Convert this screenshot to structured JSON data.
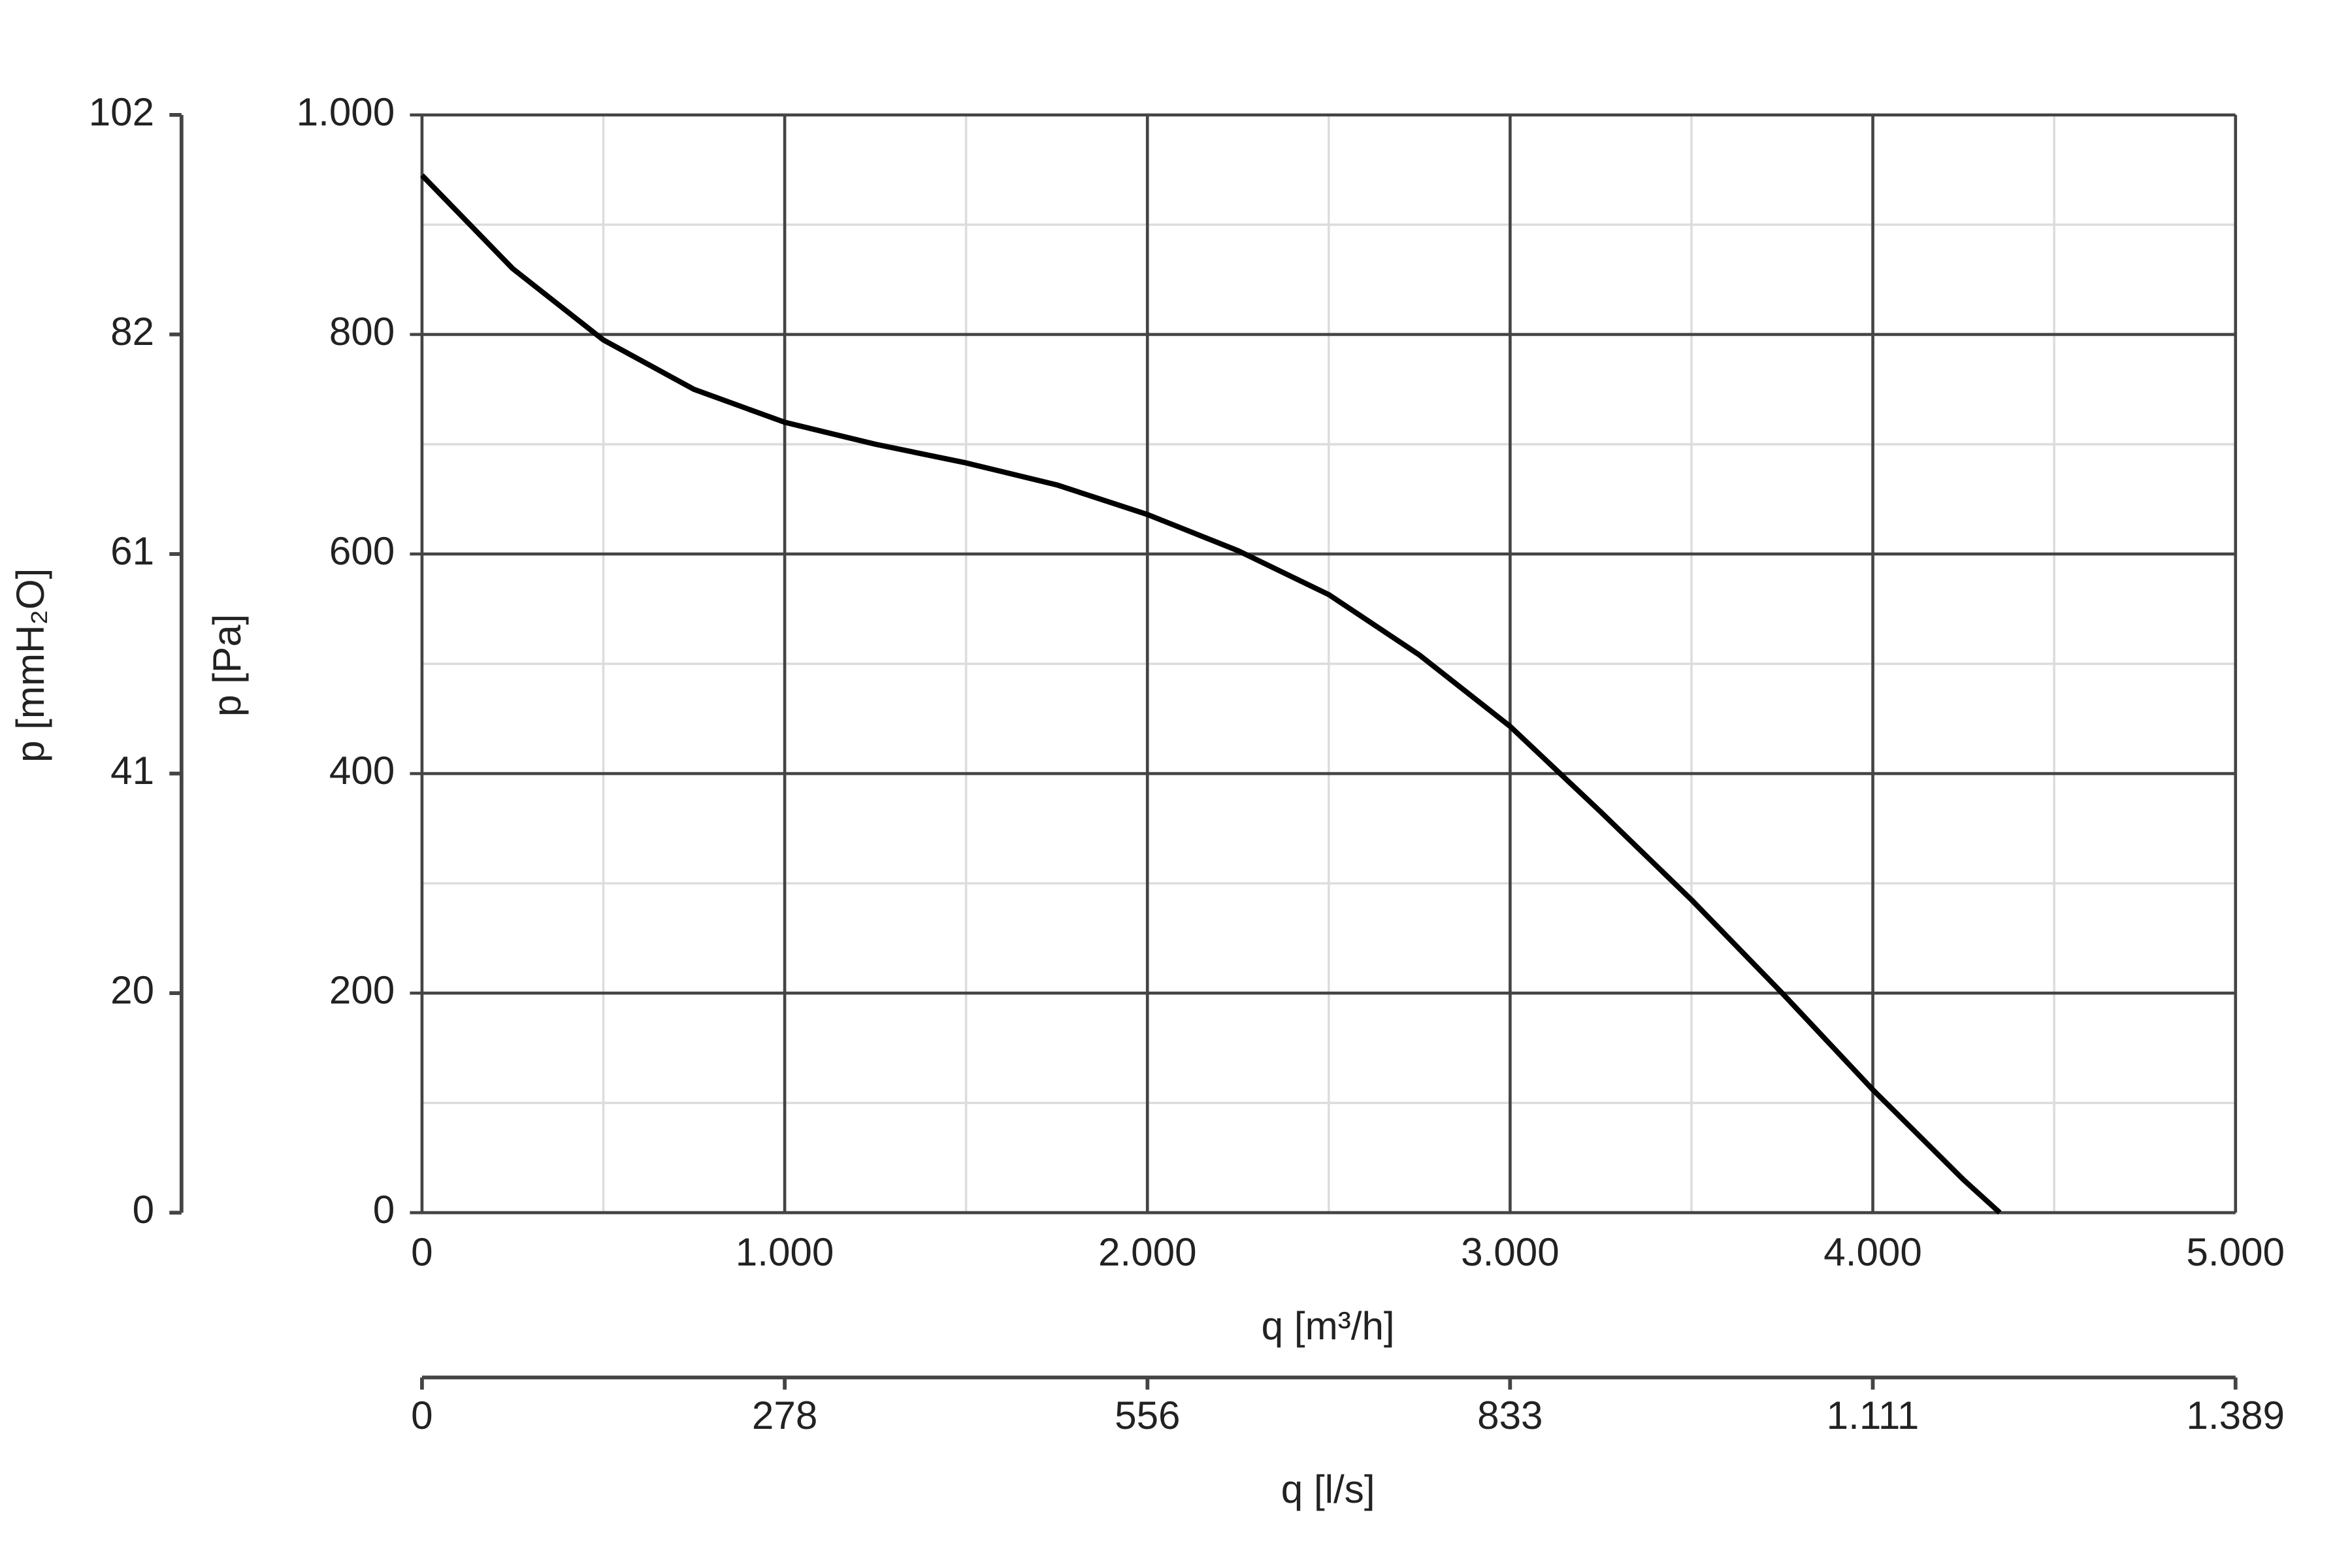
{
  "chart_data": {
    "type": "line",
    "x_label": "q [m³/h]",
    "y_label": "p [Pa]",
    "y2_label": "p [mmH₂O]",
    "x2_label": "q [l/s]",
    "x": [
      0,
      250,
      500,
      750,
      1000,
      1250,
      1500,
      1750,
      2000,
      2250,
      2500,
      2750,
      3000,
      3250,
      3500,
      3750,
      4000,
      4250,
      4350
    ],
    "series": [
      {
        "color": "#000000",
        "values": [
          945,
          860,
          795,
          750,
          720,
          700,
          683,
          663,
          636,
          603,
          563,
          508,
          443,
          365,
          285,
          200,
          112,
          30,
          0
        ]
      }
    ],
    "xlim": [
      0,
      5000
    ],
    "xticks": [
      0,
      {
        "value": 1000,
        "label": "1.000"
      },
      {
        "value": 2000,
        "label": "2.000"
      },
      {
        "value": 3000,
        "label": "3.000"
      },
      {
        "value": 4000,
        "label": "4.000"
      },
      {
        "value": 5000,
        "label": "5.000"
      }
    ],
    "x_minor_ticks": [
      500,
      1500,
      2500,
      3500,
      4500
    ],
    "ylim": [
      0,
      1000
    ],
    "yticks": [
      0,
      200,
      400,
      600,
      800,
      {
        "value": 1000,
        "label": "1.000"
      }
    ],
    "y_minor_ticks": [
      100,
      300,
      500,
      700,
      900
    ],
    "y2lim": [
      0,
      101.97
    ],
    "y2ticks": [
      0,
      {
        "value": 20.39,
        "label": "20"
      },
      {
        "value": 40.79,
        "label": "41"
      },
      {
        "value": 61.18,
        "label": "61"
      },
      {
        "value": 81.58,
        "label": "82"
      },
      {
        "value": 101.97,
        "label": "102"
      }
    ],
    "x2lim": [
      0,
      1388.9
    ],
    "x2ticks": [
      0,
      {
        "value": 277.8,
        "label": "278"
      },
      {
        "value": 555.6,
        "label": "556"
      },
      {
        "value": 833.3,
        "label": "833"
      },
      {
        "value": 1111.1,
        "label": "1.111"
      },
      {
        "value": 1388.9,
        "label": "1.389"
      }
    ],
    "grid": true
  }
}
